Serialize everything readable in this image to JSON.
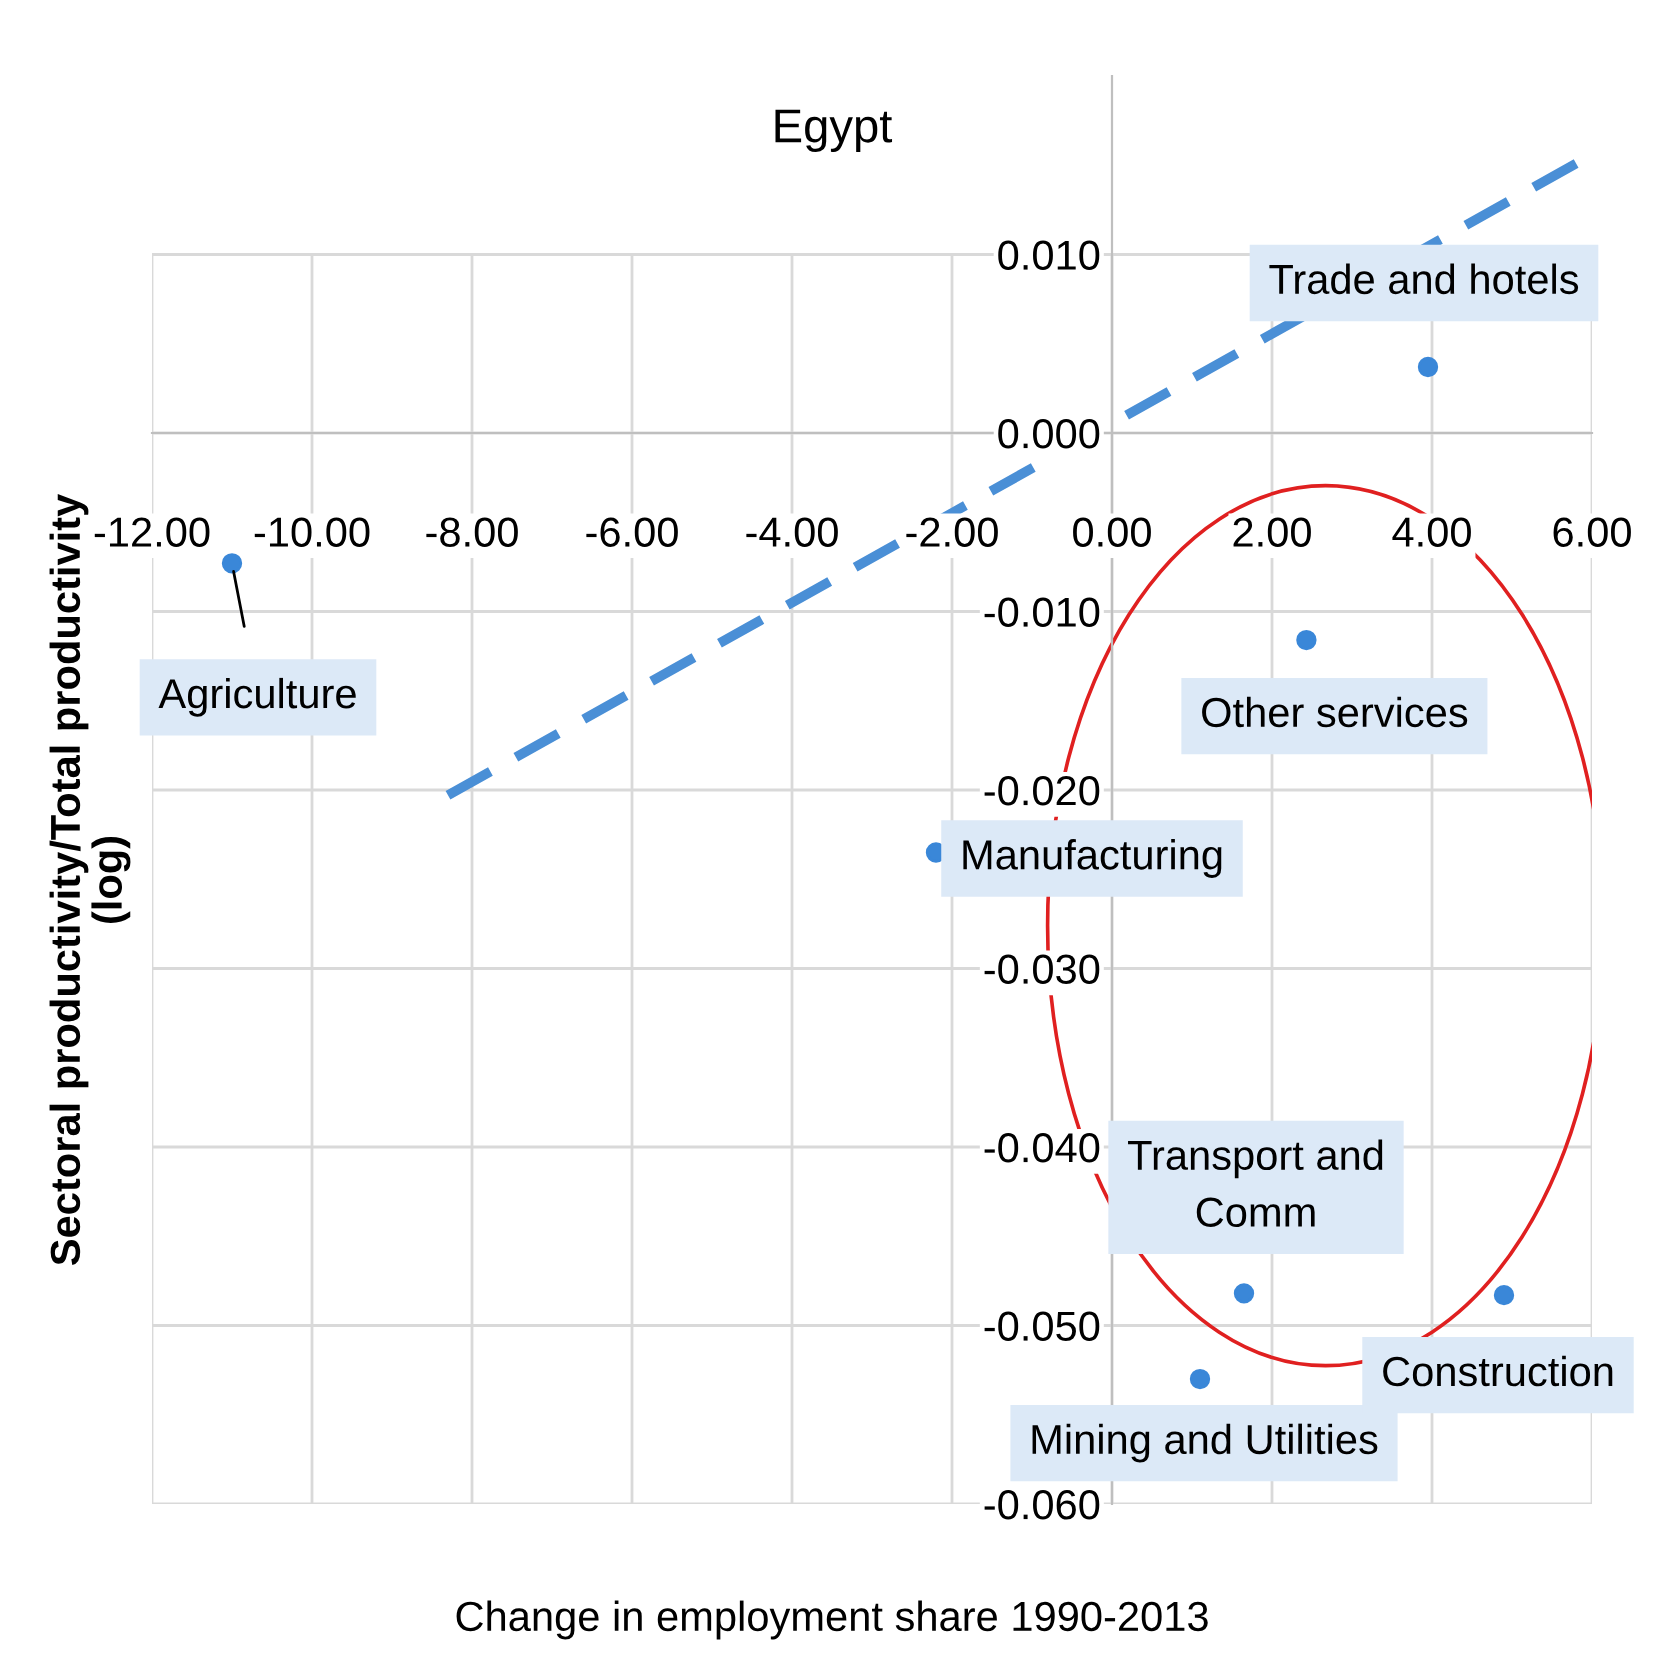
{
  "chart_data": {
    "type": "scatter",
    "title": "Egypt",
    "xlabel": "Change in employment share 1990-2013",
    "ylabel": "Sectoral productivity/Total productivity\n(log)",
    "series": [
      {
        "color": "#3a87d8",
        "marker": "circle",
        "x": [
          -11.0,
          -2.2,
          3.95,
          2.43,
          1.65,
          1.1,
          4.9
        ],
        "values": [
          -0.0073,
          -0.0235,
          0.0037,
          -0.0116,
          -0.0482,
          -0.053,
          -0.0483
        ]
      },
      {
        "type": "line",
        "color": "#4a8fd6",
        "line_style": "dashed",
        "marker": "none",
        "x": [
          -8.3,
          6.0
        ],
        "values": [
          -0.0203,
          0.0156
        ]
      }
    ],
    "annotations": [
      {
        "text": "Agriculture",
        "x": -11.0,
        "y": -0.0073
      },
      {
        "text": "Manufacturing",
        "x": -2.2,
        "y": -0.0235
      },
      {
        "text": "Trade and hotels",
        "x": 3.95,
        "y": 0.0037
      },
      {
        "text": "Other services",
        "x": 2.43,
        "y": -0.0116
      },
      {
        "text": "Transport and\nComm",
        "x": 1.65,
        "y": -0.0482
      },
      {
        "text": "Mining and Utilities",
        "x": 1.1,
        "y": -0.053
      },
      {
        "text": "Construction",
        "x": 4.9,
        "y": -0.0483
      }
    ],
    "xlim": [
      -12,
      6
    ],
    "xticks": [
      {
        "value": -12,
        "label": "-12.00"
      },
      {
        "value": -10,
        "label": "-10.00"
      },
      {
        "value": -8,
        "label": "-8.00"
      },
      {
        "value": -6,
        "label": "-6.00"
      },
      {
        "value": -4,
        "label": "-4.00"
      },
      {
        "value": -2,
        "label": "-2.00"
      },
      {
        "value": 0,
        "label": "0.00"
      },
      {
        "value": 2,
        "label": "2.00"
      },
      {
        "value": 4,
        "label": "4.00"
      },
      {
        "value": 6,
        "label": "6.00"
      }
    ],
    "ylim": [
      -0.06,
      0.02
    ],
    "yticks": [
      {
        "value": -0.06,
        "label": "-0.060"
      },
      {
        "value": -0.05,
        "label": "-0.050"
      },
      {
        "value": -0.04,
        "label": "-0.040"
      },
      {
        "value": -0.03,
        "label": "-0.030"
      },
      {
        "value": -0.02,
        "label": "-0.020"
      },
      {
        "value": -0.01,
        "label": "-0.010"
      },
      {
        "value": 0,
        "label": "0.000"
      },
      {
        "value": 0.01,
        "label": "0.010"
      }
    ],
    "grid": true
  }
}
